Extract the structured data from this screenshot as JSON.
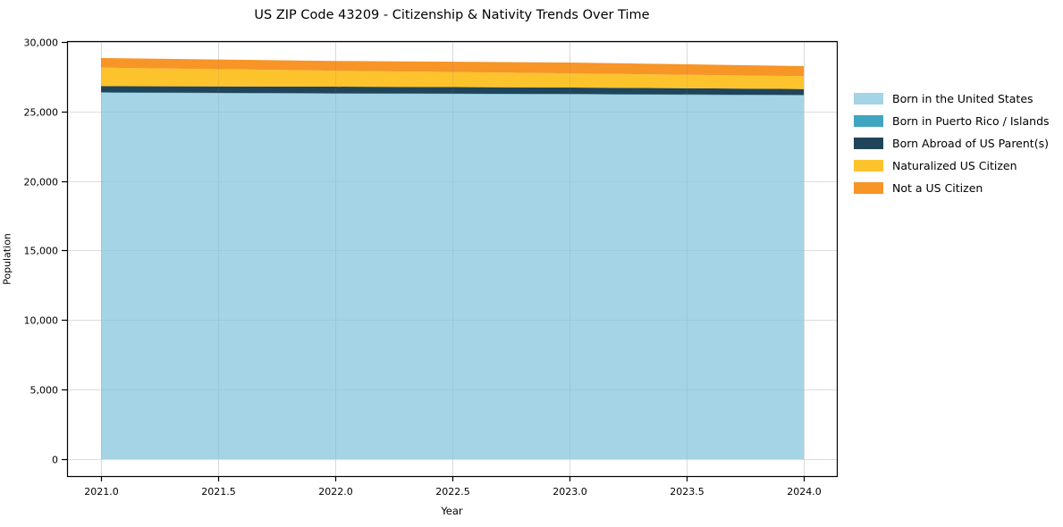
{
  "figure": {
    "title": "US ZIP Code 43209 - Citizenship & Nativity Trends Over Time",
    "xlabel": "Year",
    "ylabel": "Population"
  },
  "chart_data": {
    "type": "area",
    "stacked": true,
    "title": "US ZIP Code 43209 - Citizenship & Nativity Trends Over Time",
    "xlabel": "Year",
    "ylabel": "Population",
    "x": [
      2021,
      2022,
      2023,
      2024
    ],
    "series": [
      {
        "name": "Born in the United States",
        "color": "#a4d4e6",
        "values": [
          26350,
          26280,
          26230,
          26160
        ]
      },
      {
        "name": "Born in Puerto Rico / Islands",
        "color": "#3fa5c0",
        "values": [
          25,
          25,
          25,
          25
        ]
      },
      {
        "name": "Born Abroad of US Parent(s)",
        "color": "#20455a",
        "values": [
          450,
          480,
          470,
          430
        ]
      },
      {
        "name": "Naturalized US Citizen",
        "color": "#fcc32d",
        "values": [
          1330,
          1150,
          1020,
          930
        ]
      },
      {
        "name": "Not a US Citizen",
        "color": "#f79527",
        "values": [
          690,
          700,
          780,
          720
        ]
      }
    ],
    "totals": [
      28845,
      28635,
      28525,
      28240
    ],
    "xlim": [
      2020.855,
      2024.141
    ],
    "ylim": [
      -1222,
      30064
    ],
    "xticks": [
      2021.0,
      2021.5,
      2022.0,
      2022.5,
      2023.0,
      2023.5,
      2024.0
    ],
    "xtick_labels": [
      "2021.0",
      "2021.5",
      "2022.0",
      "2022.5",
      "2023.0",
      "2023.5",
      "2024.0"
    ],
    "yticks": [
      0,
      5000,
      10000,
      15000,
      20000,
      25000,
      30000
    ],
    "ytick_labels": [
      "0",
      "5,000",
      "10,000",
      "15,000",
      "20,000",
      "25,000",
      "30,000"
    ],
    "grid": true,
    "grid_color": "#e9e9e9",
    "spine_color": "#000000",
    "tick_color": "#000000",
    "legend_position": "right"
  }
}
